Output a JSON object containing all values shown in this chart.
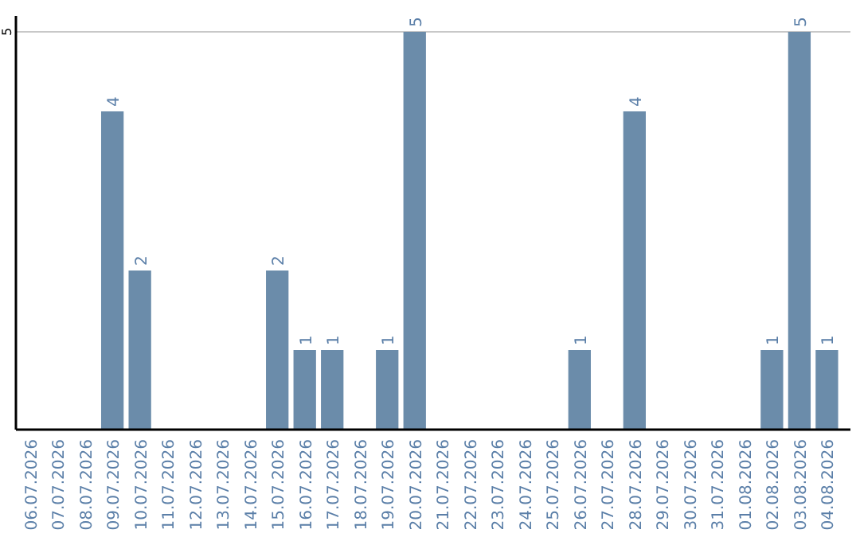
{
  "chart_data": {
    "type": "bar",
    "categories": [
      "06.07.2026",
      "07.07.2026",
      "08.07.2026",
      "09.07.2026",
      "10.07.2026",
      "11.07.2026",
      "12.07.2026",
      "13.07.2026",
      "14.07.2026",
      "15.07.2026",
      "16.07.2026",
      "17.07.2026",
      "18.07.2026",
      "19.07.2026",
      "20.07.2026",
      "21.07.2026",
      "22.07.2026",
      "23.07.2026",
      "24.07.2026",
      "25.07.2026",
      "26.07.2026",
      "27.07.2026",
      "28.07.2026",
      "29.07.2026",
      "30.07.2026",
      "31.07.2026",
      "01.08.2026",
      "02.08.2026",
      "03.08.2026",
      "04.08.2026"
    ],
    "values": [
      0,
      0,
      0,
      4,
      2,
      0,
      0,
      0,
      0,
      2,
      1,
      1,
      0,
      1,
      5,
      0,
      0,
      0,
      0,
      0,
      1,
      0,
      4,
      0,
      0,
      0,
      0,
      1,
      5,
      1
    ],
    "value_labels": [
      null,
      null,
      null,
      "4",
      "2",
      null,
      null,
      null,
      null,
      "2",
      "1",
      "1",
      null,
      "1",
      "5",
      null,
      null,
      null,
      null,
      null,
      "1",
      null,
      "4",
      null,
      null,
      null,
      null,
      "1",
      "5",
      "1"
    ],
    "color": "#6b8caa",
    "ylim": [
      0,
      5
    ],
    "yticks": [
      5
    ],
    "ref_lines": [
      {
        "axis": "y",
        "value": 5,
        "color": "#c8c8c8"
      }
    ]
  }
}
